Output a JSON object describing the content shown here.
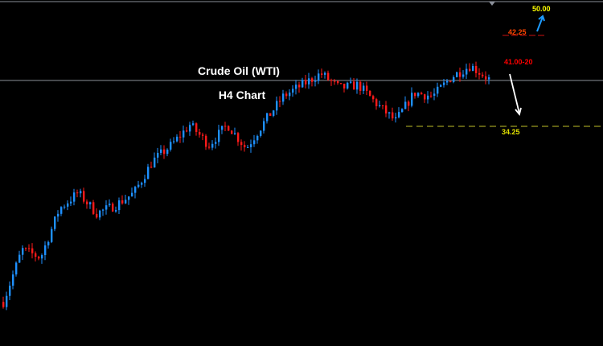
{
  "chart_data": {
    "type": "candlestick",
    "title": "Crude Oil (WTI)",
    "subtitle": "H4 Chart",
    "colors": {
      "bullish": "#1e90ff",
      "bearish": "#ff1a1a",
      "background": "#000000"
    },
    "grid": false,
    "approx_close_path": [
      18.8,
      23.4,
      22.7,
      27.0,
      28.4,
      26.6,
      27.3,
      28.4,
      31.2,
      32.6,
      34.4,
      32.6,
      34.4,
      32.3,
      34.7,
      36.9,
      37.9,
      38.9,
      37.6,
      37.9,
      36.2,
      34.7,
      37.2,
      36.9,
      38.6,
      39.6,
      38.4
    ],
    "levels": [
      {
        "label": "50.00",
        "value": 50.0,
        "color": "#ffff00"
      },
      {
        "label": "42.25",
        "value": 42.25,
        "color": "#ff4500"
      },
      {
        "label": "41.00-20",
        "value": 41.1,
        "color": "#ff0000"
      },
      {
        "label": "34.25",
        "value": 34.25,
        "color": "#e0e000"
      }
    ],
    "current_price_line": 38.3,
    "annotations": [
      {
        "type": "arrow",
        "direction": "up",
        "color": "#1e9bff",
        "target": "50.00"
      },
      {
        "type": "arrow",
        "direction": "down",
        "color": "#ffffff",
        "target": "34.25"
      }
    ]
  }
}
